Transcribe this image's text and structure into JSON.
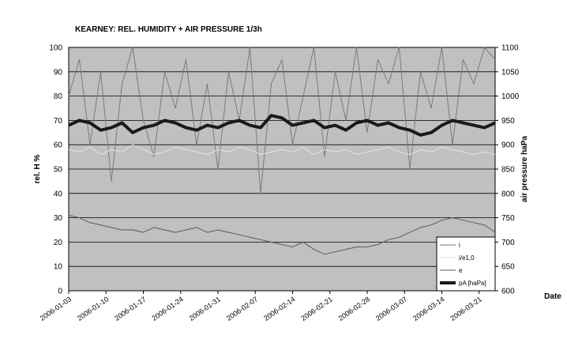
{
  "chart_data": {
    "type": "line",
    "title": "KEARNEY: REL. HUMIDITY + AIR PRESSURE   1/3h",
    "y_label": "rel. H %",
    "y2_label": "air pressure haPa",
    "x_label": "Date",
    "x": [
      "2006-01-03",
      "2006-01-05",
      "2006-01-07",
      "2006-01-09",
      "2006-01-11",
      "2006-01-13",
      "2006-01-15",
      "2006-01-17",
      "2006-01-19",
      "2006-01-21",
      "2006-01-23",
      "2006-01-25",
      "2006-01-27",
      "2006-01-29",
      "2006-01-31",
      "2006-02-02",
      "2006-02-04",
      "2006-02-06",
      "2006-02-08",
      "2006-02-10",
      "2006-02-12",
      "2006-02-14",
      "2006-02-16",
      "2006-02-18",
      "2006-02-20",
      "2006-02-22",
      "2006-02-24",
      "2006-02-26",
      "2006-02-28",
      "2006-03-02",
      "2006-03-04",
      "2006-03-06",
      "2006-03-08",
      "2006-03-10",
      "2006-03-12",
      "2006-03-14",
      "2006-03-16",
      "2006-03-18",
      "2006-03-20",
      "2006-03-22",
      "2006-03-24"
    ],
    "xlim": [
      "2006-01-03",
      "2006-03-24"
    ],
    "xticks": [
      "2006-01-03",
      "2006-01-10",
      "2006-01-17",
      "2006-01-24",
      "2006-01-31",
      "2006-02-07",
      "2006-02-14",
      "2006-02-21",
      "2006-02-28",
      "2006-03-07",
      "2006-03-14",
      "2006-03-21"
    ],
    "ylim": [
      0,
      100
    ],
    "yticks": [
      0,
      10,
      20,
      30,
      40,
      50,
      60,
      70,
      80,
      90,
      100
    ],
    "y2lim": [
      600,
      1100
    ],
    "y2ticks": [
      600,
      650,
      700,
      750,
      800,
      850,
      900,
      950,
      1000,
      1050,
      1100
    ],
    "grid": true,
    "legend": "lower right",
    "series": [
      {
        "name": "i",
        "color": "#7a7a7a",
        "width": 1,
        "values": [
          80,
          95,
          60,
          90,
          45,
          85,
          100,
          70,
          55,
          90,
          75,
          95,
          60,
          85,
          50,
          90,
          70,
          100,
          40,
          85,
          95,
          60,
          80,
          100,
          55,
          90,
          70,
          100,
          65,
          95,
          85,
          100,
          50,
          90,
          75,
          100,
          60,
          95,
          85,
          100,
          95
        ]
      },
      {
        "name": "i/e1,0",
        "color": "#e4e4e4",
        "width": 1,
        "values": [
          58,
          57,
          59,
          56,
          58,
          57,
          60,
          58,
          56,
          57,
          59,
          58,
          57,
          56,
          58,
          57,
          59,
          58,
          56,
          57,
          58,
          57,
          59,
          56,
          58,
          57,
          58,
          56,
          57,
          58,
          59,
          57,
          56,
          58,
          57,
          59,
          58,
          57,
          56,
          57,
          56
        ]
      },
      {
        "name": "e",
        "color": "#5a5a5a",
        "width": 1,
        "values": [
          31,
          30,
          28,
          27,
          26,
          25,
          25,
          24,
          26,
          25,
          24,
          25,
          26,
          24,
          25,
          24,
          23,
          22,
          21,
          20,
          19,
          18,
          20,
          17,
          15,
          16,
          17,
          18,
          18,
          19,
          21,
          22,
          24,
          26,
          27,
          29,
          30,
          29,
          28,
          27,
          24
        ]
      },
      {
        "name": "pA [haPa]",
        "color": "#1a1a1a",
        "width": 4,
        "axis": "y2",
        "values": [
          940,
          950,
          945,
          930,
          935,
          945,
          925,
          935,
          940,
          950,
          945,
          935,
          930,
          940,
          935,
          945,
          950,
          940,
          935,
          960,
          955,
          940,
          945,
          950,
          935,
          940,
          930,
          945,
          950,
          940,
          945,
          935,
          930,
          920,
          925,
          940,
          950,
          945,
          940,
          935,
          945
        ]
      }
    ]
  }
}
